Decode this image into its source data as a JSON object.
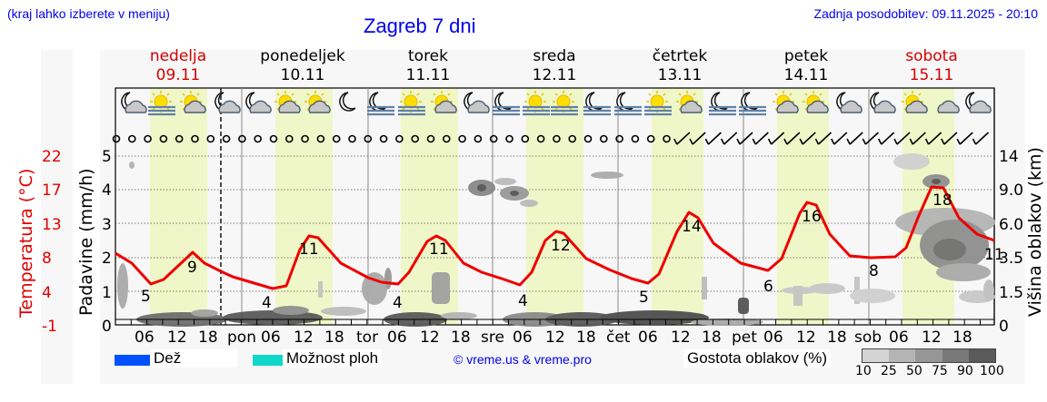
{
  "header": {
    "left_note": "(kraj lahko izberete v meniju)",
    "title": "Zagreb 7 dni",
    "last_update": "Zadnja posodobitev: 09.11.2025 - 20:10"
  },
  "days": [
    {
      "name": "nedelja",
      "date": "09.11",
      "weekend": true
    },
    {
      "name": "ponedeljek",
      "date": "10.11",
      "weekend": false
    },
    {
      "name": "torek",
      "date": "11.11",
      "weekend": false
    },
    {
      "name": "sreda",
      "date": "12.11",
      "weekend": false
    },
    {
      "name": "četrtek",
      "date": "13.11",
      "weekend": false
    },
    {
      "name": "petek",
      "date": "14.11",
      "weekend": false
    },
    {
      "name": "sobota",
      "date": "15.11",
      "weekend": true
    }
  ],
  "axes": {
    "left_temp_label": "Temperatura (°C)",
    "left_temp_ticks": [
      "22",
      "17",
      "13",
      "8",
      "4",
      "-1"
    ],
    "precip_label": "Padavine (mm/h)",
    "precip_ticks": [
      "5",
      "4",
      "3",
      "2",
      "1",
      "0"
    ],
    "right_label": "Višina oblakov (km)",
    "right_ticks": [
      "14",
      "9.0",
      "6.0",
      "3.5",
      "1.5",
      "0"
    ],
    "x_ticks": [
      "06",
      "12",
      "18",
      "pon",
      "06",
      "12",
      "18",
      "tor",
      "06",
      "12",
      "18",
      "sre",
      "06",
      "12",
      "18",
      "čet",
      "06",
      "12",
      "18",
      "pet",
      "06",
      "12",
      "18",
      "sob",
      "06",
      "12",
      "18"
    ]
  },
  "legend": {
    "rain_label": "Dež",
    "rain_color": "#0050ff",
    "showers_label": "Možnost ploh",
    "showers_color": "#10d8c8",
    "copyright": "© vreme.us & vreme.pro",
    "cloud_density_label": "Gostota oblakov (%)",
    "cloud_density_ticks": [
      "10",
      "25",
      "50",
      "75",
      "90",
      "100"
    ],
    "cloud_density_colors": [
      "#d4d4d4",
      "#b4b4b4",
      "#969696",
      "#787878",
      "#5a5a5a"
    ]
  },
  "colors": {
    "temperature_line": "#ee0000",
    "daylight_band": "#eff7c8",
    "panel_bg": "#f7f7f7",
    "link_blue": "#0000ee",
    "weekend_red": "#d40000"
  },
  "weather_icons": [
    "moon-cloud",
    "sun-fog",
    "sun-cloud",
    "moon-cloud",
    "moon-cloud",
    "sun-cloud",
    "sun-small-cloud",
    "moon",
    "moon-fog",
    "sun-fog",
    "sun-cloud",
    "moon-cloud",
    "moon-fog",
    "sun-fog",
    "sun-fog",
    "moon-fog",
    "moon-fog",
    "sun-fog",
    "sun-cloud",
    "moon-fog",
    "moon-fog",
    "sun-cloud",
    "sun-cloud",
    "moon-cloud",
    "moon-cloud",
    "sun-cloud",
    "cloud",
    "moon-cloud"
  ],
  "chart_data": {
    "type": "line",
    "title": "Zagreb 7 dni",
    "xlabel": "",
    "ylabel": "Temperatura (°C)",
    "y2label": "Padavine (mm/h)",
    "y3label": "Višina oblakov (km)",
    "ylim": [
      -1,
      22
    ],
    "precip_ylim": [
      0,
      5
    ],
    "cloud_height_ticks_km": [
      0,
      1.5,
      3.5,
      6.0,
      9.0,
      14
    ],
    "grid": true,
    "legend_position": "bottom",
    "categories": [
      "09.11",
      "10.11",
      "11.11",
      "12.11",
      "13.11",
      "14.11",
      "15.11"
    ],
    "series": [
      {
        "name": "Temperatura",
        "color": "#ee0000",
        "min_labels": [
          5,
          4,
          4,
          4,
          5,
          6,
          8
        ],
        "max_labels": [
          9,
          11,
          11,
          12,
          14,
          16,
          18
        ],
        "end_label": 11,
        "points": [
          {
            "t": "09.11 21h",
            "v": 8
          },
          {
            "t": "10.11 03h",
            "v": 4
          },
          {
            "t": "10.11 06h",
            "v": 5
          },
          {
            "t": "10.11 13h",
            "v": 9
          },
          {
            "t": "10.11 18h",
            "v": 7
          },
          {
            "t": "11.11 00h",
            "v": 5
          },
          {
            "t": "11.11 07h",
            "v": 3
          },
          {
            "t": "11.11 13h",
            "v": 11
          },
          {
            "t": "11.11 18h",
            "v": 7
          },
          {
            "t": "12.11 00h",
            "v": 4
          },
          {
            "t": "12.11 07h",
            "v": 3
          },
          {
            "t": "12.11 13h",
            "v": 11
          },
          {
            "t": "12.11 18h",
            "v": 7
          },
          {
            "t": "13.11 00h",
            "v": 5
          },
          {
            "t": "13.11 07h",
            "v": 4
          },
          {
            "t": "13.11 13h",
            "v": 12
          },
          {
            "t": "13.11 18h",
            "v": 8
          },
          {
            "t": "14.11 00h",
            "v": 5
          },
          {
            "t": "14.11 07h",
            "v": 4
          },
          {
            "t": "14.11 13h",
            "v": 14
          },
          {
            "t": "14.11 18h",
            "v": 9
          },
          {
            "t": "15.11 00h",
            "v": 6
          },
          {
            "t": "15.11 07h",
            "v": 6
          },
          {
            "t": "15.11 13h",
            "v": 16
          },
          {
            "t": "15.11 18h",
            "v": 10
          },
          {
            "t": "16.11 00h",
            "v": 8
          },
          {
            "t": "16.11 06h",
            "v": 9
          },
          {
            "t": "16.11 13h",
            "v": 18
          },
          {
            "t": "16.11 20h",
            "v": 11
          }
        ]
      },
      {
        "name": "Padavine",
        "color": "#0050ff",
        "values": [
          0,
          0,
          0,
          0,
          0,
          0,
          0
        ]
      }
    ],
    "annotations": [
      "Gostota oblakov (%)",
      "© vreme.us & vreme.pro"
    ]
  }
}
